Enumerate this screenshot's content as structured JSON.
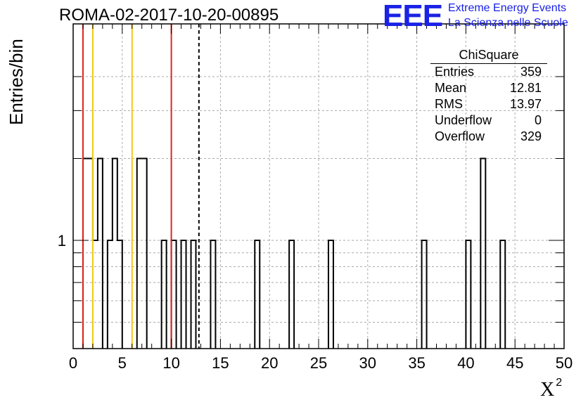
{
  "header": {
    "run_title": "ROMA-02-2017-10-20-00895",
    "logo_text": "EEE",
    "logo_line1": "Extreme Energy Events",
    "logo_line2": "La Scienza nelle Scuole"
  },
  "stats_box": {
    "title": "ChiSquare",
    "rows": [
      {
        "label": "Entries",
        "value": "359"
      },
      {
        "label": "Mean",
        "value": "12.81"
      },
      {
        "label": "RMS",
        "value": "13.97"
      },
      {
        "label": "Underflow",
        "value": "0"
      },
      {
        "label": "Overflow",
        "value": "329"
      }
    ]
  },
  "chart_data": {
    "type": "bar",
    "title": "ROMA-02-2017-10-20-00895",
    "xlabel": "X",
    "xlabel_superscript": "2",
    "ylabel": "Entries/bin",
    "xlim": [
      0,
      50
    ],
    "ylim": [
      0.4,
      5
    ],
    "y_log": true,
    "grid": true,
    "x_ticks": [
      0,
      5,
      10,
      15,
      20,
      25,
      30,
      35,
      40,
      45,
      50
    ],
    "y_tick_labels": [
      {
        "value": 1,
        "label": "1"
      }
    ],
    "bin_width": 0.5,
    "bins": [
      {
        "x": 1.0,
        "count": 2
      },
      {
        "x": 1.5,
        "count": 2
      },
      {
        "x": 2.0,
        "count": 1
      },
      {
        "x": 2.5,
        "count": 2
      },
      {
        "x": 3.5,
        "count": 1
      },
      {
        "x": 4.0,
        "count": 2
      },
      {
        "x": 4.5,
        "count": 1
      },
      {
        "x": 6.5,
        "count": 2
      },
      {
        "x": 7.0,
        "count": 2
      },
      {
        "x": 9.0,
        "count": 1
      },
      {
        "x": 10.0,
        "count": 1
      },
      {
        "x": 11.0,
        "count": 1
      },
      {
        "x": 12.0,
        "count": 1
      },
      {
        "x": 14.0,
        "count": 1
      },
      {
        "x": 18.5,
        "count": 1
      },
      {
        "x": 22.0,
        "count": 1
      },
      {
        "x": 26.0,
        "count": 1
      },
      {
        "x": 35.5,
        "count": 1
      },
      {
        "x": 40.0,
        "count": 1
      },
      {
        "x": 41.5,
        "count": 2
      },
      {
        "x": 43.5,
        "count": 1
      }
    ],
    "vertical_lines": [
      {
        "x": 1.0,
        "color": "#e0241b",
        "style": "solid"
      },
      {
        "x": 2.0,
        "color": "#f2c811",
        "style": "solid"
      },
      {
        "x": 6.0,
        "color": "#f2c811",
        "style": "solid"
      },
      {
        "x": 10.0,
        "color": "#e0241b",
        "style": "solid"
      },
      {
        "x": 12.81,
        "color": "#000000",
        "style": "dashed"
      }
    ],
    "colors": {
      "histogram": "#000000",
      "grid": "#aaaaaa",
      "logo": "#1a22e6"
    }
  }
}
